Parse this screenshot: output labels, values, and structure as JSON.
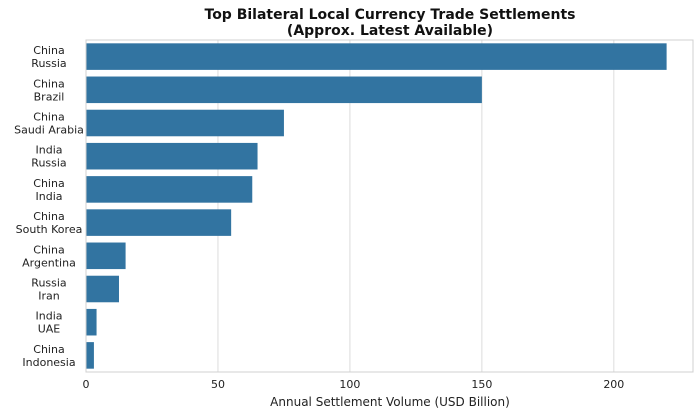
{
  "chart_data": {
    "type": "bar",
    "orientation": "horizontal",
    "title_line1": "Top Bilateral Local Currency Trade Settlements",
    "title_line2": "(Approx. Latest Available)",
    "xlabel": "Annual Settlement Volume (USD Billion)",
    "ylabel": "",
    "xlim": [
      0,
      230
    ],
    "xticks": [
      0,
      50,
      100,
      150,
      200
    ],
    "grid": "vertical",
    "bar_color": "#3274a1",
    "categories": [
      [
        "China",
        "Russia"
      ],
      [
        "China",
        "Brazil"
      ],
      [
        "China",
        "Saudi Arabia"
      ],
      [
        "India",
        "Russia"
      ],
      [
        "China",
        "India"
      ],
      [
        "China",
        "South Korea"
      ],
      [
        "China",
        "Argentina"
      ],
      [
        "Russia",
        "Iran"
      ],
      [
        "India",
        "UAE"
      ],
      [
        "China",
        "Indonesia"
      ]
    ],
    "values": [
      220,
      150,
      75,
      65,
      63,
      55,
      15,
      12.5,
      4,
      3
    ]
  }
}
